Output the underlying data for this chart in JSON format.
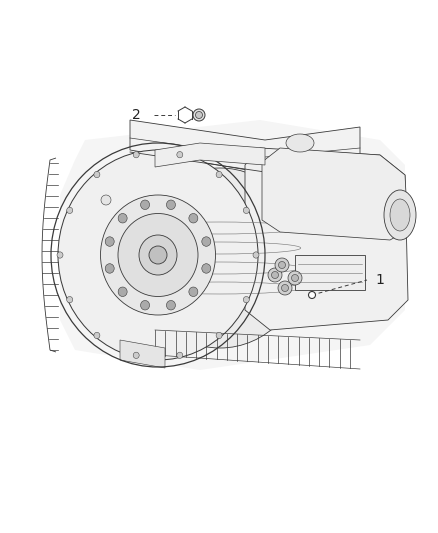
{
  "background_color": "#ffffff",
  "fig_width": 4.38,
  "fig_height": 5.33,
  "dpi": 100,
  "line_color": "#3a3a3a",
  "light_line_color": "#707070",
  "fill_light": "#e8e8e8",
  "fill_medium": "#d0d0d0",
  "fill_dark": "#b0b0b0",
  "label1": "1",
  "label2": "2",
  "label_fontsize": 10,
  "callout_lw": 0.7,
  "main_lw": 0.6,
  "anno_color": "#222222",
  "dot_fill": "#888888"
}
